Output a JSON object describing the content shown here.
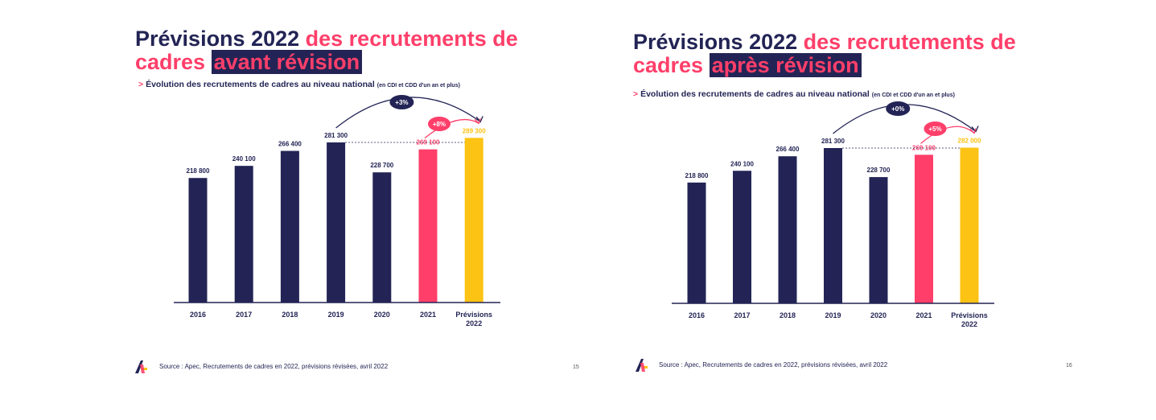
{
  "slides": [
    {
      "title_part1": "Prévisions 2022 ",
      "title_part2": "des recrutements de",
      "title_part3": "cadres ",
      "title_highlight": "avant révision",
      "subtitle_arrow": ">",
      "subtitle_main": "Évolution des recrutements de cadres au niveau national",
      "subtitle_note": "(en CDI et CDD d'un an et plus)",
      "source": "Source : Apec, Recrutements de cadres en 2022, prévisions révisées, avril 2022",
      "page_number": "15"
    },
    {
      "title_part1": "Prévisions 2022 ",
      "title_part2": "des recrutements de",
      "title_part3": "cadres ",
      "title_highlight": "après révision",
      "subtitle_arrow": ">",
      "subtitle_main": "Évolution des recrutements de cadres au niveau national",
      "subtitle_note": "(en CDI et CDD d'un an et plus)",
      "source": "Source : Apec, Recrutements de cadres en 2022, prévisions révisées, avril 2022",
      "page_number": "16"
    }
  ],
  "colors": {
    "navy": "#232455",
    "pink": "#ff3f6a",
    "yellow": "#fcc314"
  },
  "logo_icon": "apec-logo-icon",
  "chart_data": [
    {
      "type": "bar",
      "categories": [
        "2016",
        "2017",
        "2018",
        "2019",
        "2020",
        "2021",
        "Prévisions 2022"
      ],
      "values": [
        218800,
        240100,
        266400,
        281300,
        228700,
        269100,
        289300
      ],
      "value_labels": [
        "218 800",
        "240 100",
        "266 400",
        "281 300",
        "228 700",
        "269 100",
        "289 300"
      ],
      "bar_colors": [
        "#232455",
        "#232455",
        "#232455",
        "#232455",
        "#232455",
        "#ff3f6a",
        "#fcc314"
      ],
      "annotations": [
        {
          "text": "+3%",
          "from": "2019",
          "to": "Prévisions 2022",
          "color": "#232455"
        },
        {
          "text": "+8%",
          "from": "2021",
          "to": "Prévisions 2022",
          "color": "#ff3f6a"
        }
      ],
      "ylim": [
        0,
        300000
      ],
      "grid": false
    },
    {
      "type": "bar",
      "categories": [
        "2016",
        "2017",
        "2018",
        "2019",
        "2020",
        "2021",
        "Prévisions 2022"
      ],
      "values": [
        218800,
        240100,
        266400,
        281300,
        228700,
        269100,
        282000
      ],
      "value_labels": [
        "218 800",
        "240 100",
        "266 400",
        "281 300",
        "228 700",
        "269 100",
        "282 000"
      ],
      "bar_colors": [
        "#232455",
        "#232455",
        "#232455",
        "#232455",
        "#232455",
        "#ff3f6a",
        "#fcc314"
      ],
      "annotations": [
        {
          "text": "+0%",
          "from": "2019",
          "to": "Prévisions 2022",
          "color": "#232455"
        },
        {
          "text": "+5%",
          "from": "2021",
          "to": "Prévisions 2022",
          "color": "#ff3f6a"
        }
      ],
      "ylim": [
        0,
        300000
      ],
      "grid": false
    }
  ]
}
